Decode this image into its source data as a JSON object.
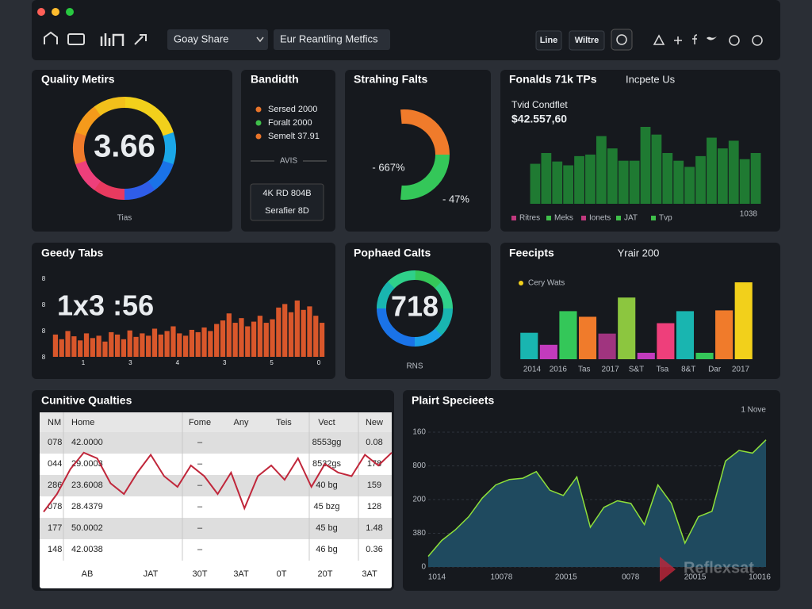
{
  "toolbar": {
    "dropdown": "Goay Share",
    "button": "Eur Reantling Metfics",
    "tabs": [
      "Line",
      "Wiltre"
    ]
  },
  "quality": {
    "title": "Quality Metirs",
    "value": "3.66",
    "caption": "Tias"
  },
  "bandwidth": {
    "title": "Bandidth",
    "legend": [
      {
        "label": "Sersed 2000",
        "color": "#e8742a"
      },
      {
        "label": "Foralt 2000",
        "color": "#3fbf4a"
      },
      {
        "label": "Semelt 37.91",
        "color": "#e8742a"
      }
    ],
    "divider": "AVIS",
    "box": [
      "4K RD 804B",
      "Serafier 8D"
    ]
  },
  "streaming": {
    "title": "Strahing Falts",
    "labels": [
      "- 667%",
      "- 47%"
    ]
  },
  "funds": {
    "title": "Fonalds 71k TPs",
    "subtitle": "Incpete Us",
    "kpi_label": "Tvid Condflet",
    "kpi_value": "$42.557,60",
    "chart": {
      "type": "bar",
      "color": "#1f7a32",
      "ylim": [
        0,
        100
      ],
      "values": [
        52,
        66,
        55,
        50,
        62,
        64,
        88,
        72,
        56,
        56,
        100,
        90,
        66,
        56,
        48,
        62,
        86,
        72,
        82,
        58,
        66
      ]
    },
    "legend": [
      {
        "label": "Ritres",
        "color": "#c0397e"
      },
      {
        "label": "Meks",
        "color": "#3fbf4a"
      },
      {
        "label": "Ionets",
        "color": "#c0397e"
      },
      {
        "label": "JAT",
        "color": "#3fbf4a"
      },
      {
        "label": "Tvp",
        "color": "#3fbf4a"
      }
    ],
    "corner_label": "1038"
  },
  "greedy": {
    "title": "Geedy Tabs",
    "value": "1x3 :56",
    "y_labels": [
      "8",
      "8",
      "8",
      "8"
    ],
    "x_labels": [
      "1",
      "3",
      "4",
      "3",
      "5",
      "0"
    ],
    "chart": {
      "type": "bar",
      "color": "#d9572b",
      "ylim": [
        0,
        100
      ],
      "values": [
        38,
        30,
        44,
        35,
        28,
        40,
        32,
        36,
        26,
        42,
        38,
        30,
        45,
        34,
        40,
        36,
        48,
        38,
        44,
        52,
        40,
        36,
        46,
        42,
        50,
        44,
        56,
        62,
        74,
        58,
        66,
        52,
        60,
        70,
        58,
        64,
        84,
        90,
        76,
        96,
        80,
        86,
        70,
        58
      ]
    }
  },
  "popular": {
    "title": "Pophaed Calts",
    "value": "718",
    "caption": "RNS"
  },
  "receipts": {
    "title": "Feecipts",
    "subtitle": "Yrair 200",
    "legend": {
      "label": "Cery Wats",
      "color": "#f2d01b"
    },
    "x_labels": [
      "2014",
      "2016",
      "Tas",
      "2017",
      "S&T",
      "Tsa",
      "8&T",
      "Dar",
      "2017"
    ],
    "chart": {
      "type": "bar",
      "ylim": [
        0,
        100
      ],
      "values": [
        33,
        18,
        60,
        53,
        32,
        77,
        8,
        45,
        60,
        8,
        61,
        96
      ],
      "colors": [
        "#19b5b0",
        "#c23bbd",
        "#34c759",
        "#f07b2b",
        "#a0347f",
        "#8cc63f",
        "#c23bbd",
        "#ee3f7b",
        "#19b5b0",
        "#34c759",
        "#f07b2b",
        "#f2d01b"
      ]
    }
  },
  "cumulative": {
    "title": "Cunitive Qualties",
    "headers": [
      "NM",
      "Home",
      "Fome",
      "Any",
      "Teis",
      "Vect",
      "New"
    ],
    "rows": [
      [
        "078",
        "42.0000",
        "–",
        "8553gg",
        "0.08"
      ],
      [
        "044",
        "29.0003",
        "–",
        "8532gs",
        "178"
      ],
      [
        "286",
        "23.6008",
        "–",
        "40 bg",
        "159"
      ],
      [
        "078",
        "28.4379",
        "–",
        "45 bzg",
        "128"
      ],
      [
        "177",
        "50.0002",
        "–",
        "45 bg",
        "1.48"
      ],
      [
        "148",
        "42.0038",
        "–",
        "46 bg",
        "0.36"
      ]
    ],
    "footer": [
      "AB",
      "JAT",
      "30T",
      "3AT",
      "0T",
      "20T",
      "3AT"
    ],
    "trend": {
      "type": "line",
      "color": "#c0263a",
      "ylim": [
        0,
        100
      ],
      "values": [
        5,
        30,
        65,
        88,
        80,
        45,
        30,
        60,
        85,
        55,
        40,
        70,
        55,
        30,
        60,
        10,
        55,
        70,
        50,
        80,
        40,
        72,
        60,
        55,
        85,
        70,
        88
      ]
    }
  },
  "plait": {
    "title": "Plairt Specieets",
    "corner_label": "1 Nove",
    "y_labels": [
      "160",
      "800",
      "200",
      "380",
      "0"
    ],
    "x_labels": [
      "1014",
      "10078",
      "20015",
      "0078",
      "20015",
      "10016"
    ],
    "chart": {
      "type": "area",
      "color": "#1f4a5f",
      "line_color": "#8ee03a",
      "ylim": [
        0,
        100
      ],
      "values": [
        8,
        20,
        28,
        38,
        52,
        62,
        66,
        67,
        72,
        58,
        54,
        68,
        30,
        45,
        50,
        48,
        32,
        62,
        48,
        18,
        38,
        42,
        80,
        88,
        86,
        96
      ]
    }
  },
  "watermark": "Reflexsat"
}
